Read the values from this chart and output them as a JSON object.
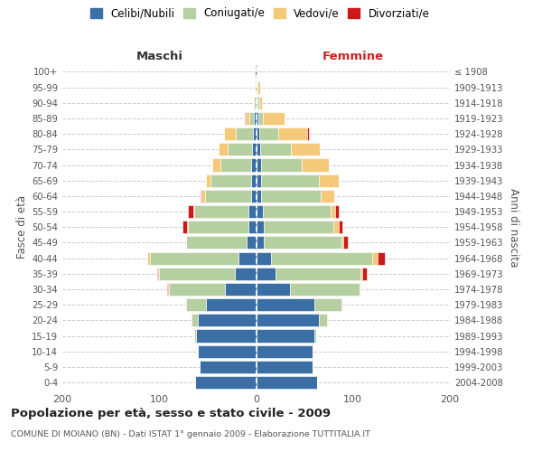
{
  "age_groups": [
    "100+",
    "95-99",
    "90-94",
    "85-89",
    "80-84",
    "75-79",
    "70-74",
    "65-69",
    "60-64",
    "55-59",
    "50-54",
    "45-49",
    "40-44",
    "35-39",
    "30-34",
    "25-29",
    "20-24",
    "15-19",
    "10-14",
    "5-9",
    "0-4"
  ],
  "birth_years": [
    "≤ 1908",
    "1909-1913",
    "1914-1918",
    "1919-1923",
    "1924-1928",
    "1929-1933",
    "1934-1938",
    "1939-1943",
    "1944-1948",
    "1949-1953",
    "1954-1958",
    "1959-1963",
    "1964-1968",
    "1969-1973",
    "1974-1978",
    "1979-1983",
    "1984-1988",
    "1989-1993",
    "1994-1998",
    "1999-2003",
    "2004-2008"
  ],
  "colors": {
    "celibi": "#3a6ea5",
    "coniugati": "#b5cfa0",
    "vedovi": "#f5c97a",
    "divorziati": "#cc1a1a"
  },
  "male_celibi": [
    1,
    0,
    0,
    2,
    3,
    4,
    5,
    5,
    5,
    8,
    8,
    10,
    18,
    22,
    32,
    52,
    60,
    62,
    60,
    58,
    63
  ],
  "male_coniugati": [
    0,
    1,
    2,
    5,
    18,
    25,
    32,
    42,
    48,
    56,
    62,
    62,
    92,
    78,
    58,
    20,
    7,
    2,
    0,
    0,
    0
  ],
  "male_vedovi": [
    0,
    0,
    0,
    4,
    12,
    10,
    8,
    5,
    3,
    1,
    1,
    0,
    2,
    1,
    1,
    1,
    1,
    0,
    0,
    0,
    0
  ],
  "male_divorziati": [
    0,
    0,
    0,
    1,
    0,
    0,
    0,
    0,
    1,
    5,
    5,
    0,
    0,
    1,
    1,
    0,
    0,
    0,
    0,
    0,
    0
  ],
  "female_celibi": [
    1,
    1,
    1,
    2,
    3,
    4,
    5,
    5,
    5,
    7,
    8,
    8,
    15,
    20,
    35,
    60,
    65,
    60,
    58,
    58,
    63
  ],
  "female_coniugati": [
    0,
    0,
    2,
    5,
    20,
    32,
    42,
    60,
    62,
    70,
    72,
    80,
    105,
    88,
    72,
    28,
    8,
    2,
    0,
    0,
    0
  ],
  "female_vedovi": [
    0,
    3,
    3,
    22,
    30,
    30,
    28,
    20,
    14,
    5,
    5,
    2,
    5,
    2,
    1,
    1,
    1,
    0,
    0,
    0,
    0
  ],
  "female_divorziati": [
    0,
    0,
    0,
    0,
    2,
    0,
    0,
    0,
    0,
    3,
    4,
    5,
    8,
    4,
    0,
    0,
    0,
    0,
    0,
    0,
    0
  ],
  "title_main": "Popolazione per età, sesso e stato civile - 2009",
  "title_sub": "COMUNE DI MOIANO (BN) - Dati ISTAT 1° gennaio 2009 - Elaborazione TUTTITALIA.IT",
  "label_maschi": "Maschi",
  "label_femmine": "Femmine",
  "ylabel_left": "Fasce di età",
  "ylabel_right": "Anni di nascita",
  "legend_labels": [
    "Celibi/Nubili",
    "Coniugati/e",
    "Vedovi/e",
    "Divorziati/e"
  ],
  "xlim": 200,
  "bg_color": "#ffffff",
  "grid_color": "#cccccc",
  "bar_height": 0.82
}
